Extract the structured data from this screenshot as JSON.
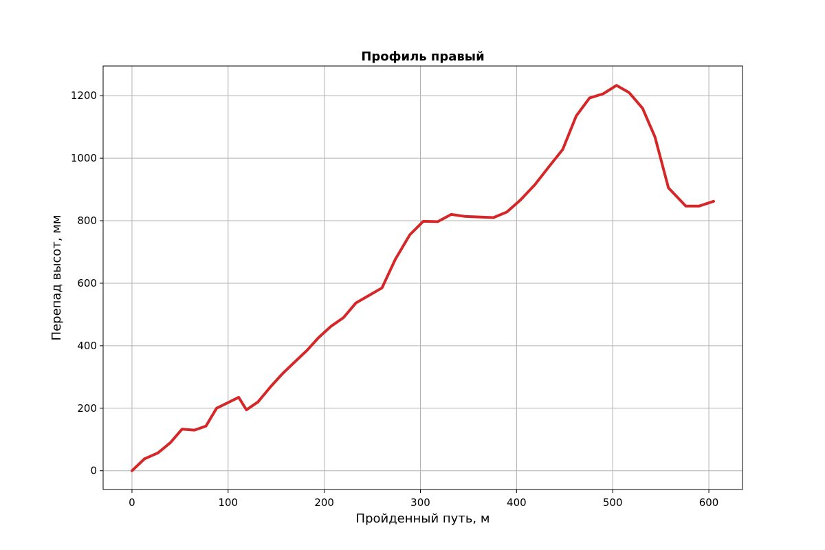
{
  "chart_data": {
    "type": "line",
    "title": "Профиль правый",
    "xlabel": "Пройденный путь, м",
    "ylabel": "Перепад высот, мм",
    "xlim": [
      -30,
      635
    ],
    "ylim": [
      -60,
      1295
    ],
    "xticks": [
      0,
      100,
      200,
      300,
      400,
      500,
      600
    ],
    "yticks": [
      0,
      200,
      400,
      600,
      800,
      1000,
      1200
    ],
    "grid": true,
    "series": [
      {
        "color": "#d62728",
        "x": [
          0,
          13,
          27,
          40,
          52,
          65,
          77,
          88,
          100,
          111,
          119,
          131,
          144,
          157,
          170,
          182,
          194,
          207,
          220,
          233,
          246,
          260,
          274,
          289,
          303,
          318,
          332,
          346,
          361,
          376,
          390,
          404,
          419,
          433,
          448,
          462,
          476,
          490,
          504,
          517,
          531,
          544,
          558,
          576,
          590,
          605
        ],
        "y": [
          0,
          38,
          57,
          90,
          133,
          130,
          143,
          200,
          218,
          235,
          195,
          220,
          268,
          312,
          350,
          385,
          426,
          462,
          490,
          537,
          560,
          585,
          677,
          755,
          798,
          797,
          820,
          814,
          812,
          810,
          828,
          866,
          915,
          970,
          1028,
          1135,
          1193,
          1206,
          1233,
          1210,
          1160,
          1068,
          905,
          847,
          847,
          862
        ]
      }
    ]
  }
}
